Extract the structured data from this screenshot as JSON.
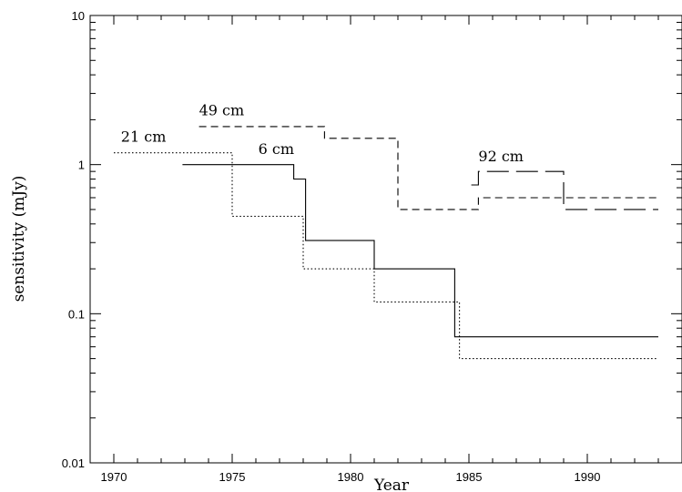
{
  "chart_data": {
    "type": "line",
    "title": "",
    "xlabel": "Year",
    "ylabel": "sensitivity (mJy)",
    "xlim": [
      1969,
      1994
    ],
    "ylim": [
      0.01,
      10
    ],
    "yscale": "log",
    "xticks": [
      1970,
      1975,
      1980,
      1985,
      1990
    ],
    "yticks": [
      0.01,
      0.1,
      1,
      10
    ],
    "ytick_labels": [
      "0.01",
      "0.1",
      "1",
      "10"
    ],
    "grid": false,
    "legend": "none",
    "series": [
      {
        "name": "21 cm",
        "linestyle": "dotted",
        "step": true,
        "x": [
          1970,
          1975,
          1975,
          1978,
          1978,
          1981,
          1981,
          1984.6,
          1984.6,
          1993
        ],
        "y": [
          1.2,
          1.2,
          0.45,
          0.45,
          0.2,
          0.2,
          0.12,
          0.12,
          0.05,
          0.05
        ]
      },
      {
        "name": "49 cm",
        "linestyle": "dashed",
        "step": true,
        "x": [
          1973.6,
          1978.9,
          1978.9,
          1982,
          1982,
          1985.4,
          1985.4,
          1993
        ],
        "y": [
          1.8,
          1.8,
          1.5,
          1.5,
          0.5,
          0.5,
          0.6,
          0.6
        ]
      },
      {
        "name": "6 cm",
        "linestyle": "solid",
        "step": true,
        "x": [
          1972.9,
          1977.6,
          1977.6,
          1978.1,
          1978.1,
          1981,
          1981,
          1984.4,
          1984.4,
          1993
        ],
        "y": [
          1.0,
          1.0,
          0.8,
          0.8,
          0.31,
          0.31,
          0.2,
          0.2,
          0.07,
          0.07
        ]
      },
      {
        "name": "92 cm",
        "linestyle": "longdash",
        "step": true,
        "x": [
          1985.1,
          1985.4,
          1985.4,
          1989,
          1989,
          1993
        ],
        "y": [
          0.73,
          0.73,
          0.9,
          0.9,
          0.5,
          0.5
        ]
      }
    ],
    "annotations": [
      {
        "text": "21 cm",
        "x": 1970.3,
        "y": 1.42
      },
      {
        "text": "49 cm",
        "x": 1973.6,
        "y": 2.15
      },
      {
        "text": "6 cm",
        "x": 1976.1,
        "y": 1.18
      },
      {
        "text": "92 cm",
        "x": 1985.4,
        "y": 1.05
      }
    ]
  }
}
